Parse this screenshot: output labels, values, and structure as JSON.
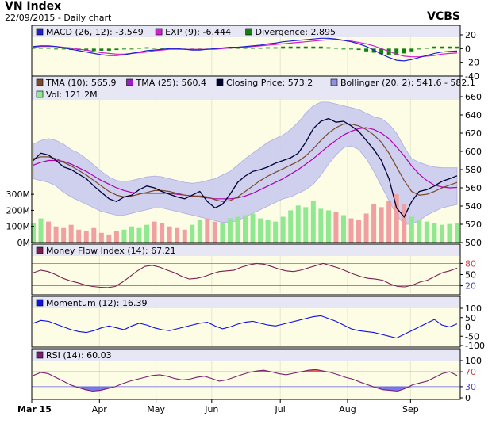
{
  "header": {
    "title": "VN Index",
    "subtitle": "22/09/2015 - Daily chart",
    "brand": "VCBS"
  },
  "colors": {
    "panel_bg": "#fdfde6",
    "legend_bg": "#e6e6f5",
    "bollinger_fill": "#c8c8f0",
    "closing": "#000033",
    "tma10": "#7a4a2a",
    "tma25": "#b000b0",
    "macd": "#2020d0",
    "exp": "#d020d0",
    "divergence": "#108010",
    "vol_up": "#90e890",
    "vol_down": "#f0a0a0",
    "mfi": "#7a2050",
    "momentum": "#1010e0",
    "rsi": "#7a2070",
    "overbought_fill": "#f04040",
    "oversold_fill": "#6060f0",
    "ref_line_red": "#e05050",
    "ref_line_blue": "#6060e0"
  },
  "x_axis": {
    "month_labels": [
      "Mar 15",
      "Apr",
      "May",
      "Jun",
      "Jul",
      "Aug",
      "Sep"
    ]
  },
  "panels": {
    "macd": {
      "legend": [
        {
          "label": "MACD (26, 12): -3.549",
          "color": "#2020d0"
        },
        {
          "label": "EXP (9): -6.444",
          "color": "#d020d0"
        },
        {
          "label": "Divergence: 2.895",
          "color": "#108010"
        }
      ],
      "y_ticks": [
        "20",
        "0",
        "-20",
        "-40"
      ]
    },
    "price": {
      "legend": [
        {
          "label": "TMA (10): 565.9",
          "color": "#7a4a2a"
        },
        {
          "label": "TMA (25): 560.4",
          "color": "#9a20c0"
        },
        {
          "label": "Closing Price: 573.2",
          "color": "#000033"
        },
        {
          "label": "Bollinger (20, 2): 541.6 - 582.1",
          "color": "#9090e0"
        }
      ],
      "legend2": [
        {
          "label": "Vol: 121.2M",
          "color": "#90e890"
        }
      ],
      "y_ticks": [
        "660",
        "640",
        "620",
        "600",
        "580",
        "560",
        "540",
        "520",
        "500"
      ],
      "vol_ticks": [
        "300M",
        "200M",
        "100M",
        "0M"
      ]
    },
    "mfi": {
      "legend": [
        {
          "label": "Money Flow Index (14): 67.21",
          "color": "#7a2050"
        }
      ],
      "y_ticks": [
        "80",
        "50",
        "20"
      ]
    },
    "momentum": {
      "legend": [
        {
          "label": "Momentum (12): 16.39",
          "color": "#1010e0"
        }
      ],
      "y_ticks": [
        "100",
        "50",
        "0",
        "-50",
        "-100"
      ]
    },
    "rsi": {
      "legend": [
        {
          "label": "RSI (14): 60.03",
          "color": "#7a2070"
        }
      ],
      "y_ticks": [
        "100",
        "70",
        "30",
        "0"
      ]
    }
  },
  "chart_data": [
    {
      "type": "line",
      "title": "MACD (26, 12)",
      "ylim": [
        -40,
        20
      ],
      "series": [
        {
          "name": "MACD (26, 12)",
          "values": [
            3,
            4,
            4,
            3,
            1,
            -1,
            -3,
            -5,
            -7,
            -9,
            -10,
            -10,
            -9,
            -7,
            -5,
            -3,
            -2,
            -1,
            0,
            0,
            -1,
            -2,
            -2,
            -1,
            0,
            1,
            2,
            2,
            3,
            4,
            5,
            7,
            8,
            10,
            11,
            12,
            13,
            14,
            15,
            15,
            14,
            12,
            10,
            7,
            3,
            -2,
            -8,
            -13,
            -17,
            -18,
            -16,
            -13,
            -10,
            -7,
            -5,
            -4,
            -3.5
          ]
        },
        {
          "name": "EXP (9)",
          "values": [
            2,
            3,
            3,
            3,
            2,
            1,
            -1,
            -2,
            -4,
            -6,
            -7,
            -8,
            -8,
            -7,
            -6,
            -5,
            -3,
            -2,
            -1,
            -1,
            -1,
            -1,
            -1,
            -1,
            -1,
            0,
            1,
            1,
            2,
            3,
            4,
            5,
            6,
            7,
            8,
            9,
            10,
            11,
            12,
            13,
            13,
            12,
            11,
            9,
            7,
            4,
            0,
            -4,
            -8,
            -11,
            -12,
            -12,
            -11,
            -10,
            -8,
            -7,
            -6.4
          ]
        },
        {
          "name": "Divergence",
          "values": [
            1,
            1,
            1,
            0,
            -1,
            -2,
            -2,
            -3,
            -3,
            -3,
            -3,
            -2,
            -1,
            0,
            1,
            2,
            1,
            1,
            1,
            1,
            0,
            -1,
            -1,
            0,
            1,
            1,
            1,
            1,
            1,
            1,
            1,
            2,
            2,
            3,
            3,
            3,
            3,
            3,
            3,
            2,
            1,
            0,
            -1,
            -2,
            -4,
            -6,
            -8,
            -9,
            -9,
            -7,
            -4,
            -1,
            1,
            3,
            3,
            3,
            2.9
          ]
        }
      ]
    },
    {
      "type": "line",
      "title": "VN Index price",
      "ylim": [
        500,
        660
      ],
      "series": [
        {
          "name": "Closing Price",
          "values": [
            590,
            598,
            596,
            590,
            583,
            580,
            575,
            570,
            562,
            555,
            548,
            545,
            550,
            552,
            558,
            562,
            560,
            556,
            553,
            550,
            548,
            552,
            556,
            545,
            538,
            542,
            553,
            566,
            573,
            578,
            580,
            583,
            587,
            590,
            593,
            598,
            610,
            625,
            633,
            636,
            632,
            633,
            628,
            622,
            612,
            602,
            590,
            570,
            538,
            528,
            545,
            556,
            558,
            562,
            567,
            570,
            573.2
          ]
        },
        {
          "name": "TMA (10)",
          "values": [
            592,
            594,
            594,
            592,
            588,
            584,
            579,
            574,
            568,
            562,
            556,
            552,
            550,
            551,
            553,
            555,
            557,
            557,
            556,
            554,
            552,
            551,
            551,
            550,
            547,
            545,
            546,
            550,
            556,
            562,
            568,
            573,
            577,
            581,
            585,
            589,
            595,
            603,
            612,
            620,
            626,
            630,
            630,
            628,
            624,
            618,
            610,
            598,
            583,
            568,
            556,
            552,
            553,
            556,
            560,
            563,
            565.9
          ]
        },
        {
          "name": "TMA (25)",
          "values": [
            585,
            588,
            590,
            590,
            589,
            586,
            582,
            578,
            573,
            568,
            564,
            560,
            557,
            555,
            554,
            554,
            554,
            554,
            554,
            553,
            552,
            551,
            550,
            549,
            548,
            548,
            548,
            549,
            551,
            554,
            558,
            562,
            566,
            570,
            575,
            580,
            586,
            592,
            599,
            606,
            612,
            618,
            622,
            625,
            626,
            624,
            620,
            614,
            605,
            595,
            584,
            575,
            568,
            563,
            561,
            560,
            560.4
          ]
        },
        {
          "name": "Bollinger upper",
          "values": [
            608,
            612,
            614,
            612,
            608,
            602,
            598,
            592,
            585,
            578,
            572,
            568,
            567,
            568,
            570,
            572,
            573,
            572,
            570,
            568,
            566,
            565,
            566,
            568,
            570,
            574,
            578,
            585,
            592,
            598,
            604,
            610,
            614,
            618,
            624,
            632,
            642,
            650,
            654,
            654,
            652,
            650,
            648,
            646,
            642,
            638,
            636,
            630,
            620,
            605,
            592,
            588,
            585,
            583,
            582,
            582,
            582.1
          ]
        },
        {
          "name": "Bollinger lower",
          "values": [
            570,
            568,
            566,
            562,
            555,
            550,
            546,
            542,
            538,
            534,
            532,
            530,
            530,
            532,
            534,
            536,
            538,
            538,
            536,
            534,
            532,
            530,
            528,
            526,
            524,
            522,
            522,
            524,
            528,
            532,
            536,
            540,
            544,
            548,
            550,
            554,
            558,
            564,
            574,
            586,
            596,
            604,
            606,
            602,
            592,
            578,
            562,
            546,
            530,
            520,
            520,
            524,
            530,
            534,
            538,
            540,
            541.6
          ]
        }
      ]
    },
    {
      "type": "bar",
      "title": "Volume",
      "ylim": [
        0,
        350
      ],
      "series": [
        {
          "name": "Vol",
          "values": [
            120,
            150,
            130,
            100,
            90,
            110,
            80,
            70,
            90,
            60,
            50,
            70,
            80,
            100,
            90,
            110,
            130,
            120,
            100,
            90,
            80,
            110,
            140,
            150,
            130,
            120,
            150,
            160,
            170,
            180,
            150,
            140,
            130,
            160,
            200,
            230,
            220,
            260,
            210,
            200,
            190,
            170,
            150,
            140,
            180,
            240,
            220,
            260,
            300,
            240,
            160,
            140,
            130,
            120,
            110,
            115,
            121.2
          ]
        }
      ]
    },
    {
      "type": "line",
      "title": "Money Flow Index (14)",
      "ylim": [
        0,
        100
      ],
      "series": [
        {
          "name": "Money Flow Index (14)",
          "values": [
            55,
            62,
            58,
            50,
            40,
            33,
            28,
            22,
            18,
            16,
            15,
            18,
            30,
            45,
            60,
            72,
            75,
            70,
            62,
            55,
            45,
            38,
            40,
            45,
            52,
            58,
            60,
            62,
            70,
            76,
            80,
            78,
            72,
            65,
            60,
            58,
            62,
            68,
            74,
            80,
            74,
            68,
            60,
            52,
            45,
            40,
            38,
            35,
            25,
            18,
            17,
            22,
            30,
            35,
            45,
            55,
            60,
            67.21
          ]
        }
      ]
    },
    {
      "type": "line",
      "title": "Momentum (12)",
      "ylim": [
        -100,
        100
      ],
      "series": [
        {
          "name": "Momentum (12)",
          "values": [
            20,
            35,
            30,
            15,
            0,
            -15,
            -25,
            -30,
            -20,
            -5,
            5,
            -5,
            -15,
            5,
            20,
            10,
            -5,
            -15,
            -20,
            -10,
            0,
            10,
            20,
            25,
            5,
            -10,
            0,
            15,
            25,
            30,
            20,
            10,
            5,
            15,
            25,
            35,
            45,
            55,
            60,
            45,
            30,
            10,
            -10,
            -20,
            -25,
            -30,
            -40,
            -50,
            -60,
            -40,
            -20,
            0,
            20,
            40,
            10,
            0,
            16.39
          ]
        }
      ]
    },
    {
      "type": "line",
      "title": "RSI (14)",
      "ylim": [
        0,
        100
      ],
      "series": [
        {
          "name": "RSI (14)",
          "values": [
            60,
            68,
            65,
            55,
            45,
            35,
            28,
            22,
            18,
            20,
            25,
            30,
            38,
            45,
            50,
            55,
            60,
            62,
            58,
            52,
            48,
            50,
            55,
            58,
            52,
            45,
            48,
            55,
            62,
            68,
            72,
            74,
            70,
            65,
            62,
            66,
            70,
            74,
            76,
            72,
            68,
            62,
            55,
            50,
            42,
            35,
            28,
            22,
            20,
            18,
            25,
            35,
            40,
            45,
            55,
            65,
            70,
            60.03
          ]
        }
      ]
    }
  ]
}
